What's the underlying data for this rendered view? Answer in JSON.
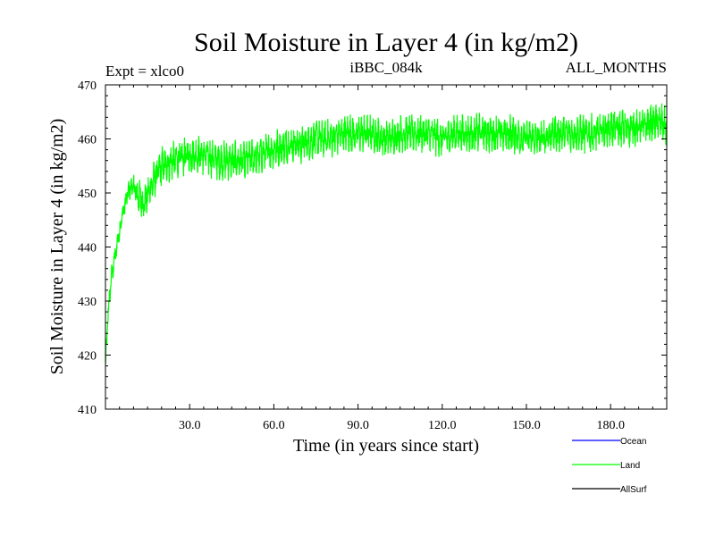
{
  "chart_data": {
    "type": "line",
    "title": "Soil Moisture in Layer 4 (in kg/m2)",
    "subtitle_left": "Expt = xlco0",
    "subtitle_center": "iBBC_084k",
    "subtitle_right": "ALL_MONTHS",
    "xlabel": "Time (in years since start)",
    "ylabel": "Soil Moisture in Layer 4 (in kg/m2)",
    "xlim": [
      0,
      200
    ],
    "ylim": [
      410,
      470
    ],
    "x_ticks": [
      30,
      60,
      90,
      120,
      150,
      180
    ],
    "x_tick_labels": [
      "30.0",
      "60.0",
      "90.0",
      "120.0",
      "150.0",
      "180.0"
    ],
    "y_ticks": [
      410,
      420,
      430,
      440,
      450,
      460,
      470
    ],
    "y_tick_labels": [
      "410",
      "420",
      "430",
      "440",
      "450",
      "460",
      "470"
    ],
    "legend_position": "bottom-right",
    "series": [
      {
        "name": "Ocean",
        "color": "#0000ff",
        "x": [],
        "y": []
      },
      {
        "name": "Land",
        "color": "#00ff00",
        "x": [
          0,
          1,
          2,
          3,
          4,
          5,
          6,
          7,
          8,
          9,
          10,
          12,
          14,
          16,
          18,
          20,
          25,
          30,
          35,
          40,
          45,
          50,
          55,
          60,
          65,
          70,
          75,
          80,
          85,
          90,
          95,
          100,
          105,
          110,
          115,
          120,
          125,
          130,
          135,
          140,
          145,
          150,
          155,
          160,
          165,
          170,
          175,
          180,
          185,
          190,
          195,
          198,
          200
        ],
        "y": [
          418,
          428,
          434,
          437,
          440,
          443,
          446,
          448,
          450,
          451,
          451,
          449,
          448,
          451,
          453,
          455,
          456,
          457,
          457,
          456,
          456,
          456,
          457,
          458,
          459,
          459,
          460,
          460,
          461,
          461,
          461,
          460,
          461,
          461,
          461,
          460,
          461,
          461,
          461,
          461,
          461,
          460,
          460,
          461,
          461,
          461,
          461,
          462,
          462,
          462,
          463,
          463,
          462
        ],
        "noise_amplitude": 3.5
      },
      {
        "name": "AllSurf",
        "color": "#000000",
        "x": [],
        "y": []
      }
    ]
  }
}
